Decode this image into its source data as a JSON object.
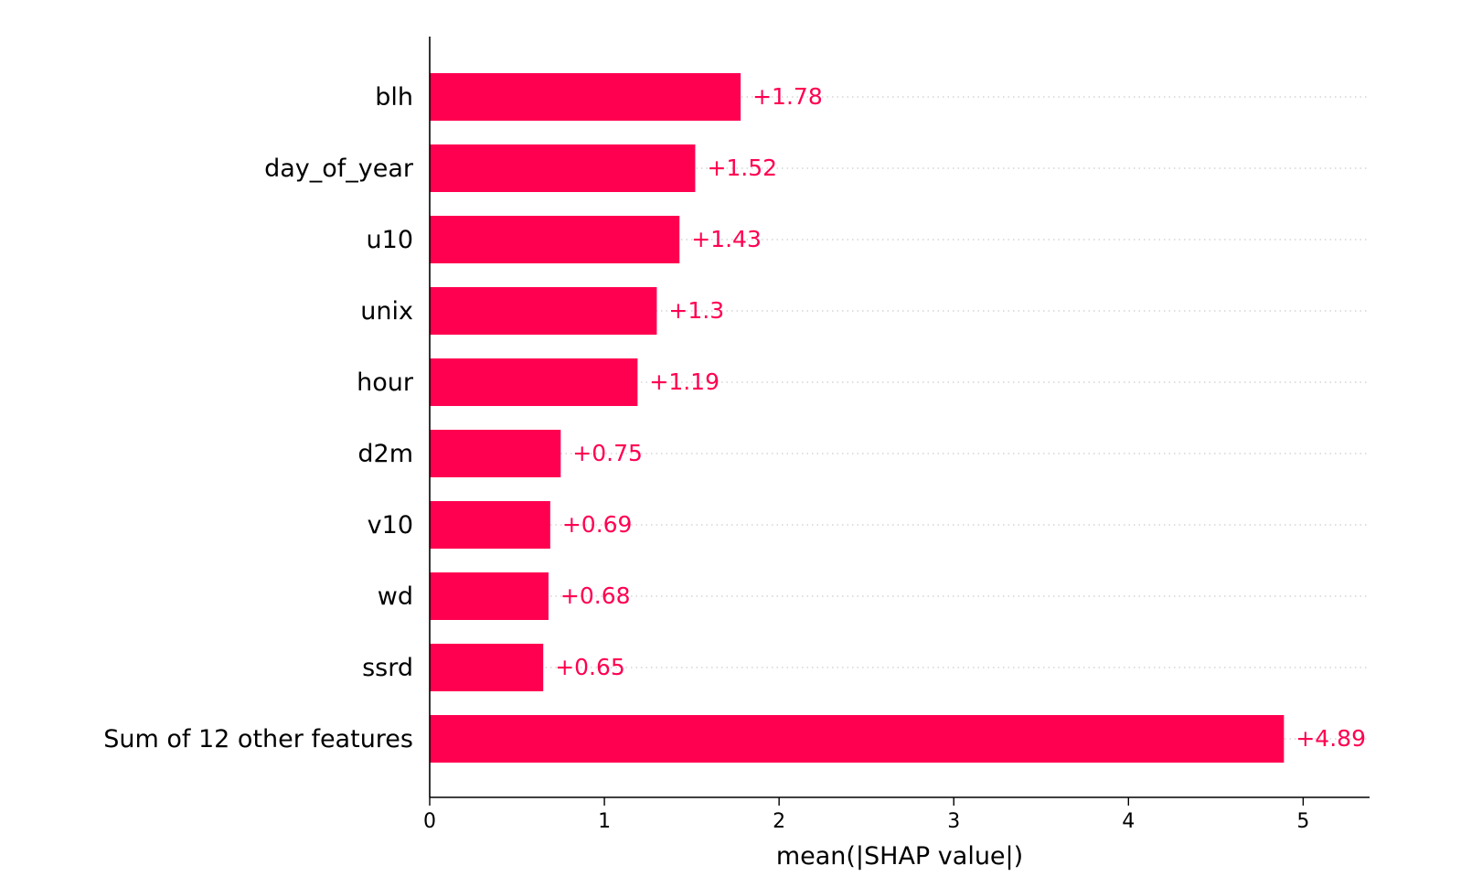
{
  "chart_data": {
    "type": "bar",
    "orientation": "horizontal",
    "categories": [
      "blh",
      "day_of_year",
      "u10",
      "unix",
      "hour",
      "d2m",
      "v10",
      "wd",
      "ssrd",
      "Sum of 12 other features"
    ],
    "values": [
      1.78,
      1.52,
      1.43,
      1.3,
      1.19,
      0.75,
      0.69,
      0.68,
      0.65,
      4.89
    ],
    "value_labels": [
      "+1.78",
      "+1.52",
      "+1.43",
      "+1.3",
      "+1.19",
      "+0.75",
      "+0.69",
      "+0.68",
      "+0.65",
      "+4.89"
    ],
    "xlabel": "mean(|SHAP value|)",
    "xlim": [
      0,
      5.38
    ],
    "xticks": [
      0,
      1,
      2,
      3,
      4,
      5
    ],
    "xtick_labels": [
      "0",
      "1",
      "2",
      "3",
      "4",
      "5"
    ],
    "grid": "dotted horizontal guide per bar",
    "bar_color": "#ff0051",
    "value_label_color": "#ff0051"
  }
}
